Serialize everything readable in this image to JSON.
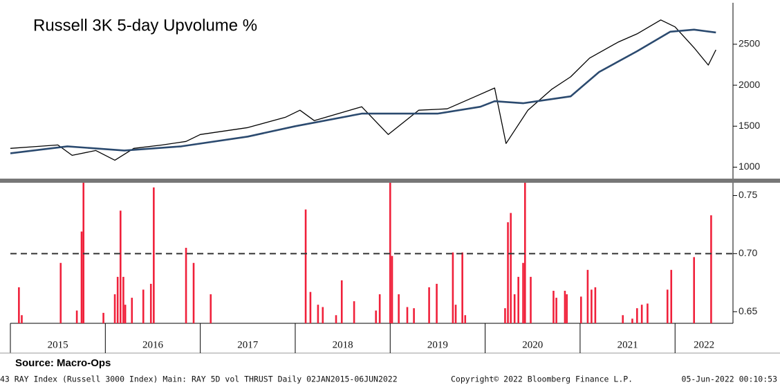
{
  "title": "Russell 3K 5-day Upvolume %",
  "source": "Source: Macro-Ops",
  "footer": [
    "43 RAY Index (Russell 3000 Index) Main: RAY 5D vol THRUST  Daily 02JAN2015-06JUN2022",
    "Copyright© 2022 Bloomberg Finance L.P.",
    "05-Jun-2022 00:10:53"
  ],
  "chart_data": [
    {
      "type": "line",
      "xlim": [
        2015,
        2022.61
      ],
      "ylim": [
        860,
        3040
      ],
      "yticks": [
        1000,
        1500,
        2000,
        2500
      ],
      "series": [
        {
          "color": "#000000",
          "x": [
            2015.0,
            2015.3,
            2015.5,
            2015.65,
            2015.9,
            2016.1,
            2016.3,
            2016.6,
            2016.85,
            2017.0,
            2017.5,
            2017.9,
            2018.05,
            2018.2,
            2018.7,
            2018.98,
            2019.3,
            2019.6,
            2019.9,
            2020.1,
            2020.22,
            2020.45,
            2020.7,
            2020.9,
            2021.1,
            2021.4,
            2021.6,
            2021.85,
            2022.0,
            2022.2,
            2022.35,
            2022.43
          ],
          "values": [
            1229,
            1254,
            1271,
            1144,
            1203,
            1085,
            1229,
            1271,
            1314,
            1398,
            1483,
            1610,
            1695,
            1568,
            1737,
            1398,
            1695,
            1712,
            1864,
            1966,
            1288,
            1695,
            1949,
            2102,
            2331,
            2525,
            2627,
            2797,
            2712,
            2458,
            2246,
            2432
          ]
        },
        {
          "color": "#2b4a6f",
          "x": [
            2015.0,
            2015.6,
            2016.2,
            2016.8,
            2017.5,
            2018.0,
            2018.7,
            2019.5,
            2019.95,
            2020.1,
            2020.4,
            2020.9,
            2021.2,
            2021.6,
            2021.95,
            2022.2,
            2022.43
          ],
          "values": [
            1169,
            1254,
            1203,
            1254,
            1373,
            1500,
            1653,
            1653,
            1737,
            1805,
            1780,
            1864,
            2161,
            2415,
            2653,
            2678,
            2644
          ]
        }
      ]
    },
    {
      "type": "bar",
      "xlim": [
        2015,
        2022.61
      ],
      "ylim": [
        0.64,
        0.761
      ],
      "yticks": [
        0.65,
        {
          "value": 0.7,
          "label": "0.70"
        },
        0.75
      ],
      "threshold": 0.7,
      "color": "#f0203a",
      "xticks": [
        2016,
        2017,
        2018,
        2019,
        2020,
        2021,
        2022
      ],
      "period_labels": [
        "2015",
        "2016",
        "2017",
        "2018",
        "2019",
        "2020",
        "2021",
        "2022"
      ],
      "x": [
        2015.09,
        2015.12,
        2015.53,
        2015.7,
        2015.75,
        2015.77,
        2015.98,
        2016.1,
        2016.13,
        2016.16,
        2016.19,
        2016.21,
        2016.28,
        2016.4,
        2016.48,
        2016.51,
        2016.85,
        2016.93,
        2017.11,
        2018.11,
        2018.16,
        2018.24,
        2018.29,
        2018.43,
        2018.49,
        2018.62,
        2018.85,
        2018.89,
        2019.0,
        2019.02,
        2019.09,
        2019.18,
        2019.25,
        2019.41,
        2019.49,
        2019.66,
        2019.69,
        2019.76,
        2019.79,
        2020.21,
        2020.24,
        2020.27,
        2020.31,
        2020.35,
        2020.4,
        2020.42,
        2020.48,
        2020.72,
        2020.75,
        2020.84,
        2020.86,
        2021.01,
        2021.08,
        2021.12,
        2021.16,
        2021.45,
        2021.55,
        2021.6,
        2021.65,
        2021.71,
        2021.92,
        2021.96,
        2022.2,
        2022.38
      ],
      "values": [
        0.671,
        0.647,
        0.692,
        0.651,
        0.719,
        0.761,
        0.649,
        0.665,
        0.68,
        0.737,
        0.68,
        0.656,
        0.662,
        0.669,
        0.674,
        0.757,
        0.705,
        0.692,
        0.665,
        0.738,
        0.667,
        0.656,
        0.654,
        0.647,
        0.677,
        0.659,
        0.651,
        0.665,
        0.761,
        0.698,
        0.665,
        0.654,
        0.653,
        0.671,
        0.674,
        0.701,
        0.656,
        0.701,
        0.647,
        0.653,
        0.727,
        0.735,
        0.665,
        0.68,
        0.692,
        0.761,
        0.68,
        0.668,
        0.662,
        0.668,
        0.665,
        0.663,
        0.686,
        0.669,
        0.671,
        0.647,
        0.644,
        0.653,
        0.656,
        0.657,
        0.669,
        0.686,
        0.697,
        0.733
      ]
    }
  ]
}
